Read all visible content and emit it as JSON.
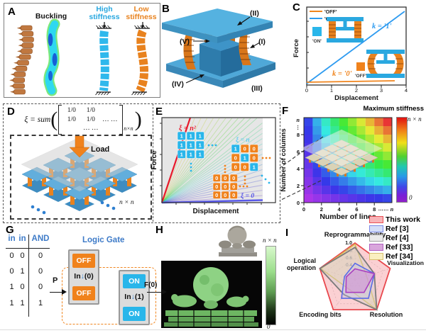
{
  "panels": {
    "a": "A",
    "b": "B",
    "c": "C",
    "d": "D",
    "e": "E",
    "f": "F",
    "g": "G",
    "h": "H",
    "i": "I"
  },
  "panel_a": {
    "buckling": "Buckling",
    "high": [
      "High",
      "stiffness"
    ],
    "low": [
      "Low",
      "stiffness"
    ]
  },
  "panel_b": {
    "part_labels": [
      "(I)",
      "(II)",
      "(III)",
      "(IV)",
      "(V)"
    ]
  },
  "panel_c": {
    "ylabel": "Force",
    "xlabel": "Displacement",
    "legend": [
      {
        "label": "'OFF'",
        "color": "#F0851E"
      },
      {
        "label": "'ON'",
        "color": "#2E9BF0"
      }
    ],
    "on_caption": "'ON'",
    "off_caption": "'OFF'",
    "k1": "k = '1'",
    "k0": "k = '0'",
    "x_ticks": [
      "0",
      "1",
      "2",
      "3",
      "4"
    ]
  },
  "panel_d": {
    "formula": {
      "lhs": "ξ = sum",
      "paren_open": "(",
      "m": [
        [
          "1/0",
          "1/0",
          ""
        ],
        [
          "1/0",
          "1/0",
          "… …"
        ],
        [
          "",
          "… …",
          ""
        ]
      ],
      "subscript": "n×n",
      "paren_close": ")"
    },
    "load": "Load",
    "nxn": "n × n"
  },
  "panel_e": {
    "ylabel": "Force",
    "xlabel": "Displacement",
    "xi_max": "ξ = n²",
    "xi_mid": "ξ = n",
    "xi_min": "ξ = 0",
    "matrices": {
      "ones": [
        [
          1,
          1,
          1
        ],
        [
          1,
          1,
          1
        ],
        [
          1,
          1,
          1
        ]
      ],
      "identity": [
        [
          1,
          0,
          0
        ],
        [
          0,
          1,
          0
        ],
        [
          0,
          0,
          1
        ]
      ],
      "zeros": [
        [
          0,
          0,
          0
        ],
        [
          0,
          0,
          0
        ],
        [
          0,
          0,
          0
        ]
      ]
    }
  },
  "panel_f": {
    "title": "Maximum stiffness",
    "xlabel": "Number of lines",
    "ylabel": "Number of columns",
    "x_ticks": [
      "0",
      "2",
      "4",
      "6",
      "8",
      "……",
      "n"
    ],
    "y_ticks": [
      "0",
      "2",
      "4",
      "6",
      "8",
      "…",
      "n"
    ],
    "cbar_top": "n × n",
    "cbar_bottom": "0"
  },
  "panel_g": {
    "gate_title": "Logic Gate",
    "headers": [
      "in",
      "in",
      "AND"
    ],
    "rows": [
      [
        "0",
        "0",
        "0"
      ],
      [
        "0",
        "1",
        "0"
      ],
      [
        "1",
        "0",
        "0"
      ],
      [
        "1",
        "1",
        "1"
      ]
    ],
    "p_label": "P",
    "box1": {
      "top": "OFF",
      "mid_pre": "In",
      "mid_arrow": "↓",
      "mid_val": "(0)",
      "bottom": "OFF"
    },
    "box2": {
      "top": "ON",
      "mid_pre": "In",
      "mid_arrow": "↓",
      "mid_val": "(1)",
      "bottom": "ON"
    },
    "out": "F(0)"
  },
  "panel_h": {
    "cbar_top": "n × n",
    "cbar_bottom": "0"
  },
  "panel_i": {
    "axis_top": "Reprogrammability",
    "axis_right": "Visualization",
    "axis_bottom_right": "Resolution",
    "axis_bottom_left": "Encoding bits",
    "axis_left": [
      "Logical",
      "operation"
    ],
    "ticks": [
      "1.0",
      "0.8",
      "0.6",
      "0.4"
    ],
    "legend": [
      {
        "label": "This work",
        "fill": "#F8B4B8",
        "stroke": "#E85055"
      },
      {
        "label": "Ref [3]",
        "fill": "#D4DEF8",
        "stroke": "#7B8BE8"
      },
      {
        "label": "Ref [4]",
        "fill": "#EBEBEB",
        "stroke": "#A0A0A0"
      },
      {
        "label": "Ref [33]",
        "fill": "#D9A6DC",
        "stroke": "#B060C0"
      },
      {
        "label": "Ref [34]",
        "fill": "#FAF0C0",
        "stroke": "#D8C070"
      }
    ]
  },
  "chart_data": [
    {
      "panel": "C",
      "type": "line",
      "xlabel": "Displacement",
      "ylabel": "Force",
      "xlim": [
        0,
        4
      ],
      "series": [
        {
          "name": "'ON' state, k = '1'",
          "color": "#2E9BF0",
          "x": [
            0,
            4
          ],
          "y": [
            0,
            4
          ]
        },
        {
          "name": "'OFF' state, k = '0'",
          "color": "#F0851E",
          "x": [
            0,
            4
          ],
          "y": [
            0,
            0.1
          ]
        }
      ],
      "legend_position": "top-left"
    },
    {
      "panel": "E",
      "type": "line",
      "xlabel": "Displacement",
      "ylabel": "Force",
      "description": "Fan of force-displacement lines whose slope grows with ξ = sum of the n×n binary state matrix; from ξ = 0 (all cells OFF, flat line) through ξ = n (identity matrix) to ξ = n² (all cells ON, steepest red line).",
      "labeled_lines": [
        "ξ = n²",
        "ξ = n",
        "ξ = 0"
      ],
      "fan_line_count": 26
    },
    {
      "panel": "F",
      "type": "heatmap",
      "title": "Maximum stiffness",
      "xlabel": "Number of lines",
      "ylabel": "Number of columns",
      "x_ticks": [
        "0",
        "2",
        "4",
        "6",
        "8",
        "……",
        "n"
      ],
      "y_ticks": [
        "0",
        "2",
        "4",
        "6",
        "8",
        "…",
        "n"
      ],
      "colormap": "rainbow, purple = 0 to red = n × n",
      "values_normalized_rows_top_to_bottom": [
        [
          0.1,
          0.2,
          0.3,
          0.4,
          0.5,
          0.6,
          0.7,
          0.8,
          0.9,
          1.0
        ],
        [
          0.09,
          0.18,
          0.27,
          0.36,
          0.45,
          0.54,
          0.63,
          0.72,
          0.81,
          0.9
        ],
        [
          0.08,
          0.16,
          0.24,
          0.32,
          0.4,
          0.48,
          0.56,
          0.64,
          0.72,
          0.8
        ],
        [
          0.07,
          0.14,
          0.21,
          0.28,
          0.35,
          0.42,
          0.49,
          0.56,
          0.63,
          0.7
        ],
        [
          0.06,
          0.12,
          0.18,
          0.24,
          0.3,
          0.36,
          0.42,
          0.48,
          0.54,
          0.6
        ],
        [
          0.05,
          0.1,
          0.15,
          0.2,
          0.25,
          0.3,
          0.35,
          0.4,
          0.45,
          0.5
        ],
        [
          0.04,
          0.08,
          0.12,
          0.16,
          0.2,
          0.24,
          0.28,
          0.32,
          0.36,
          0.4
        ],
        [
          0.03,
          0.06,
          0.09,
          0.12,
          0.15,
          0.18,
          0.21,
          0.24,
          0.27,
          0.3
        ],
        [
          0.02,
          0.04,
          0.06,
          0.08,
          0.1,
          0.12,
          0.14,
          0.16,
          0.18,
          0.2
        ],
        [
          0.01,
          0.02,
          0.03,
          0.04,
          0.05,
          0.06,
          0.07,
          0.08,
          0.09,
          0.1
        ]
      ]
    },
    {
      "panel": "I",
      "type": "radar",
      "axes": [
        "Reprogrammability",
        "Visualization",
        "Resolution",
        "Encoding bits",
        "Logical operation"
      ],
      "range": [
        0,
        1
      ],
      "tick_labels": [
        "1.0",
        "0.8",
        "0.6",
        "0.4"
      ],
      "series": [
        {
          "name": "This work",
          "values": [
            1.0,
            1.0,
            1.0,
            1.0,
            1.0
          ],
          "fill": "#F7AAAE",
          "fill_opacity": 0.55,
          "stroke": "#E8474D",
          "stroke_width": 1.8
        },
        {
          "name": "Ref [3]",
          "values": [
            0.45,
            0.55,
            0.62,
            0.62,
            0.3
          ],
          "fill": "#B8C4F2",
          "fill_opacity": 0.35,
          "stroke": "#5B6BE8",
          "stroke_width": 1.6
        },
        {
          "name": "Ref [4]",
          "values": [
            0.88,
            0.55,
            1.0,
            0.5,
            1.0
          ],
          "fill": "#D0D0D0",
          "fill_opacity": 0.4,
          "stroke": "#7A7A7A",
          "stroke_width": 1.8
        },
        {
          "name": "Ref [33]",
          "values": [
            0.3,
            0.55,
            0.42,
            0.42,
            0.25
          ],
          "fill": "#D080D8",
          "fill_opacity": 0.45,
          "stroke": "#A93FBF",
          "stroke_width": 1.6
        },
        {
          "name": "Ref [34]",
          "values": [
            0.97,
            0.33,
            1.0,
            0.3,
            0.97
          ],
          "fill": "#F2E09E",
          "fill_opacity": 0.35,
          "stroke": "#D9BC55",
          "stroke_width": 1.5
        }
      ]
    }
  ]
}
